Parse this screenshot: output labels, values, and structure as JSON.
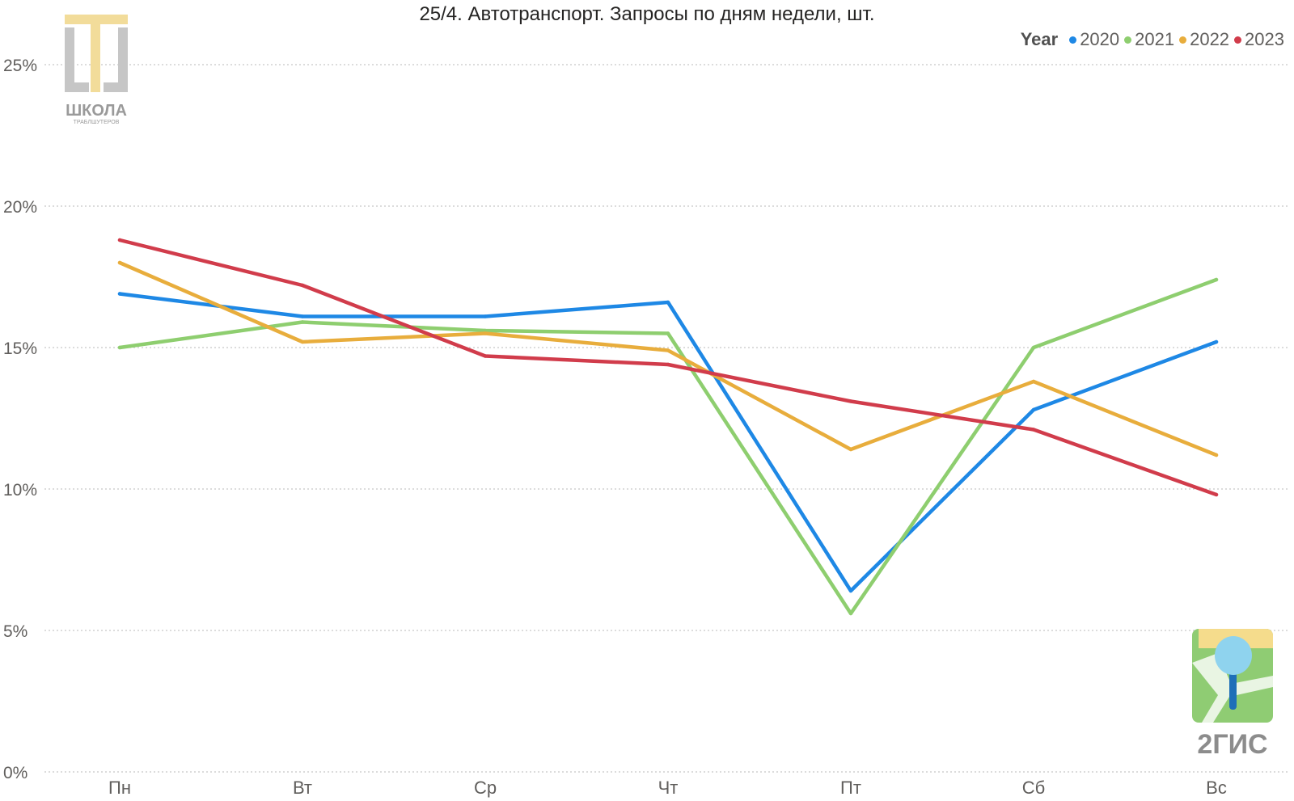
{
  "chart_data": {
    "type": "line",
    "title": "25/4. Автотранспорт. Запросы по дням недели, шт.",
    "categories": [
      "Пн",
      "Вт",
      "Ср",
      "Чт",
      "Пт",
      "Сб",
      "Вс"
    ],
    "ylim": [
      0,
      25
    ],
    "yticks": [
      0,
      5,
      10,
      15,
      20,
      25
    ],
    "ytick_labels": [
      "0%",
      "5%",
      "10%",
      "15%",
      "20%",
      "25%"
    ],
    "grid": true,
    "legend": {
      "title": "Year",
      "position": "top-right"
    },
    "series": [
      {
        "name": "2020",
        "color": "#1e88e5",
        "values": [
          16.9,
          16.1,
          16.1,
          16.6,
          6.4,
          12.8,
          15.2
        ]
      },
      {
        "name": "2021",
        "color": "#8ece6f",
        "values": [
          15.0,
          15.9,
          15.6,
          15.5,
          5.6,
          15.0,
          17.4
        ]
      },
      {
        "name": "2022",
        "color": "#e8ad3c",
        "values": [
          18.0,
          15.2,
          15.5,
          14.9,
          11.4,
          13.8,
          11.2
        ]
      },
      {
        "name": "2023",
        "color": "#d13c4b",
        "values": [
          18.8,
          17.2,
          14.7,
          14.4,
          13.1,
          12.1,
          9.8
        ]
      }
    ]
  },
  "logos": {
    "school_main": "ШКОЛА",
    "school_sub": "ТРАБЛШУТЕРОВ",
    "gis": "2ГИС"
  }
}
